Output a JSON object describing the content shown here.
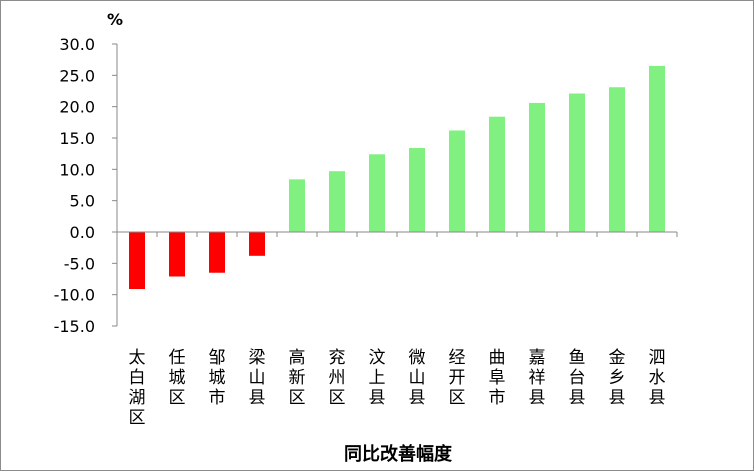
{
  "chart_data": {
    "type": "bar",
    "title": "",
    "xlabel": "同比改善幅度",
    "ylabel": "%",
    "ylim": [
      -15,
      30
    ],
    "y_ticks": [
      "30.0",
      "25.0",
      "20.0",
      "15.0",
      "10.0",
      "5.0",
      "0.0",
      "-5.0",
      "-10.0",
      "-15.0"
    ],
    "y_tick_values": [
      30,
      25,
      20,
      15,
      10,
      5,
      0,
      -5,
      -10,
      -15
    ],
    "grid": false,
    "legend": "none",
    "categories": [
      "太白湖区",
      "任城区",
      "邹城市",
      "梁山县",
      "高新区",
      "兖州区",
      "汶上县",
      "微山县",
      "经开区",
      "曲阜市",
      "嘉祥县",
      "鱼台县",
      "金乡县",
      "泗水县"
    ],
    "values": [
      -9.1,
      -7.1,
      -6.5,
      -3.8,
      8.4,
      9.7,
      12.4,
      13.4,
      16.2,
      18.4,
      20.6,
      22.1,
      23.1,
      26.5
    ],
    "colors": {
      "positive": "#80f080",
      "negative": "#ff0000",
      "axis": "#888888"
    }
  }
}
